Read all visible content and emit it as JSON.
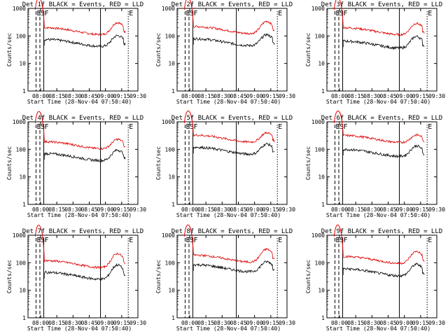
{
  "chart_data": {
    "type": "line",
    "subtitle_template": "{det} BLACK = Events, RED = LLD",
    "xlabel": "Start Time (28-Nov-04 07:50:40)",
    "ylabel": "Counts/sec",
    "yscale": "log",
    "ylim": [
      1,
      1000
    ],
    "ytick_labels": [
      "1",
      "10",
      "100",
      "1000"
    ],
    "ytick_values": [
      1,
      10,
      100,
      1000
    ],
    "xlim_minutes": [
      -2,
      41
    ],
    "xtick_labels": [
      "08:00",
      "08:15",
      "08:30",
      "08:45",
      "09:00",
      "09:15",
      "09:30"
    ],
    "xtick_minutes": [
      0,
      15,
      30,
      45,
      60,
      75,
      90
    ],
    "colors": {
      "events": "#000000",
      "lld": "#e00000",
      "axes": "#000000"
    },
    "markers": [
      {
        "label": "E",
        "minute": -1.2,
        "style": "dashed"
      },
      {
        "label": "S",
        "minute": 0.4,
        "style": "dashed"
      },
      {
        "label": "F",
        "minute": 2.0,
        "style": "solid"
      },
      {
        "label": "E",
        "minute": 37.0,
        "style": "dotted"
      }
    ],
    "panels": [
      {
        "det": "Det 1f",
        "events_base": 75,
        "lld_base": 200,
        "vline_minute": 25.5,
        "peak_lld": 380,
        "peak_events": 130
      },
      {
        "det": "Det 2f",
        "events_base": 80,
        "lld_base": 220,
        "vline_minute": 20.0,
        "peak_lld": 420,
        "peak_events": 140
      },
      {
        "det": "Det 3f",
        "events_base": 65,
        "lld_base": 200,
        "vline_minute": 25.5,
        "peak_lld": 360,
        "peak_events": 120
      },
      {
        "det": "Det 4f",
        "events_base": 70,
        "lld_base": 190,
        "vline_minute": 25.5,
        "peak_lld": 300,
        "peak_events": 120
      },
      {
        "det": "Det 5f",
        "events_base": 120,
        "lld_base": 330,
        "vline_minute": 20.0,
        "peak_lld": 520,
        "peak_events": 200
      },
      {
        "det": "Det 6f",
        "events_base": 100,
        "lld_base": 320,
        "vline_minute": 25.5,
        "peak_lld": 450,
        "peak_events": 170
      },
      {
        "det": "Det 7f",
        "events_base": 45,
        "lld_base": 120,
        "vline_minute": 25.5,
        "peak_lld": 260,
        "peak_events": 100
      },
      {
        "det": "Det 8f",
        "events_base": 85,
        "lld_base": 190,
        "vline_minute": 20.0,
        "peak_lld": 380,
        "peak_events": 140
      },
      {
        "det": "Det 9f",
        "events_base": 60,
        "lld_base": 170,
        "vline_minute": 25.5,
        "peak_lld": 320,
        "peak_events": 110
      }
    ]
  }
}
